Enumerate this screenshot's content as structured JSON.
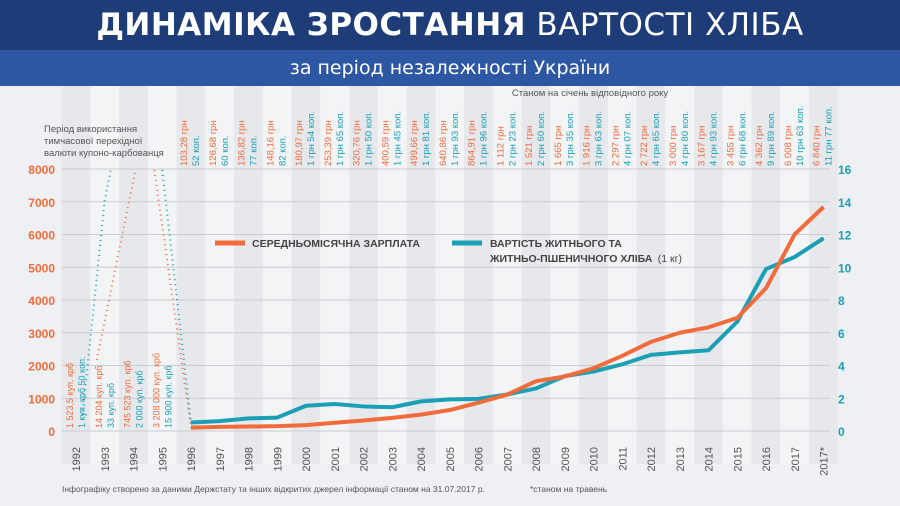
{
  "header": {
    "title_bold": "ДИНАМІКА ЗРОСТАННЯ",
    "title_rest": "ВАРТОСТІ ХЛІБА",
    "subtitle": "за період незалежності України"
  },
  "note_top": "Станом на січень відповідного року",
  "coupon_note": "Період використання тимчасової перехідної валюти купоно-карбованця",
  "footer_source": "Інфографіку створено за даними Держстату та інших відкритих джерел інформації станом на 31.07.2017 р.",
  "footer_note": "*станом на травень",
  "colors": {
    "salary": "#f26b3a",
    "bread": "#1a9fb5"
  },
  "chart_data": {
    "type": "line",
    "categories": [
      "1992",
      "1993",
      "1994",
      "1995",
      "1996",
      "1997",
      "1998",
      "1999",
      "2000",
      "2001",
      "2002",
      "2003",
      "2004",
      "2005",
      "2006",
      "2007",
      "2008",
      "2009",
      "2010",
      "2011",
      "2012",
      "2013",
      "2014",
      "2015",
      "2016",
      "2017",
      "2017*"
    ],
    "left_axis": {
      "ylim": [
        0,
        8000
      ],
      "ticks": [
        "0",
        "1000",
        "2000",
        "3000",
        "4000",
        "5000",
        "6000",
        "7000",
        "8000"
      ]
    },
    "right_axis": {
      "ylim": [
        0,
        16
      ],
      "ticks": [
        "0",
        "2",
        "4",
        "6",
        "8",
        "10",
        "12",
        "14",
        "16"
      ]
    },
    "legend": {
      "salary": "СЕРЕДНЬОМІСЯЧНА ЗАРПЛАТА",
      "bread_line1": "ВАРТІСТЬ ЖИТНЬОГО ТА",
      "bread_line2": "ЖИТНЬО-ПШЕНИЧНОГО ХЛІБА",
      "bread_unit": "(1 кг)"
    },
    "series": [
      {
        "name": "Середньомісячна зарплата",
        "axis": "left",
        "values": [
          null,
          null,
          null,
          null,
          103.28,
          126.68,
          136.82,
          148.16,
          180.97,
          253.39,
          320.76,
          400.59,
          499.66,
          640.86,
          864.91,
          1112,
          1521,
          1665,
          1916,
          2297,
          2722,
          3000,
          3167,
          3455,
          4362,
          6008,
          6840
        ],
        "labels": [
          "1 523,5 куп. крб",
          "14 204 куп. крб",
          "745 523 куп. крб",
          "3 208 000 куп. крб",
          "103,28 грн",
          "126,68 грн",
          "136,82 грн",
          "148,16 грн",
          "180,97 грн",
          "253,39 грн",
          "320,76 грн",
          "400,59 грн",
          "499,66 грн",
          "640,86 грн",
          "864,91 грн",
          "1 112 грн",
          "1 521 грн",
          "1 665 грн",
          "1 916 грн",
          "2 297 грн",
          "2 722 грн",
          "3 000 грн",
          "3 167 грн",
          "3 455 грн",
          "4 362 грн",
          "6 008 грн",
          "6 840 грн"
        ]
      },
      {
        "name": "Вартість житнього та житньо-пшеничного хліба (1 кг)",
        "axis": "right",
        "values": [
          null,
          null,
          null,
          null,
          0.52,
          0.6,
          0.77,
          0.82,
          1.54,
          1.65,
          1.5,
          1.45,
          1.81,
          1.93,
          1.96,
          2.23,
          2.6,
          3.35,
          3.63,
          4.07,
          4.65,
          4.8,
          4.93,
          6.68,
          9.89,
          10.63,
          11.77
        ],
        "labels": [
          "1 куп. крб 50 коп.",
          "33 куп. крб",
          "2 000 куп. крб",
          "15 900 куп. крб",
          "52 коп.",
          "60 коп.",
          "77 коп.",
          "82 коп.",
          "1 грн 54 коп.",
          "1 грн 65 коп.",
          "1 грн 50 коп.",
          "1 грн 45 коп.",
          "1 грн 81 коп.",
          "1 грн 93 коп.",
          "1 грн 96 коп.",
          "2 грн 23 коп.",
          "2 грн 60 коп.",
          "3 грн 35 коп.",
          "3 грн 63 коп.",
          "4 грн 07 коп.",
          "4 грн 65 коп.",
          "4 грн 80 коп.",
          "4 грн 93 коп.",
          "6 грн 68 коп.",
          "9 грн 89 коп.",
          "10 грн 63 коп.",
          "11 грн 77 коп."
        ]
      }
    ]
  }
}
